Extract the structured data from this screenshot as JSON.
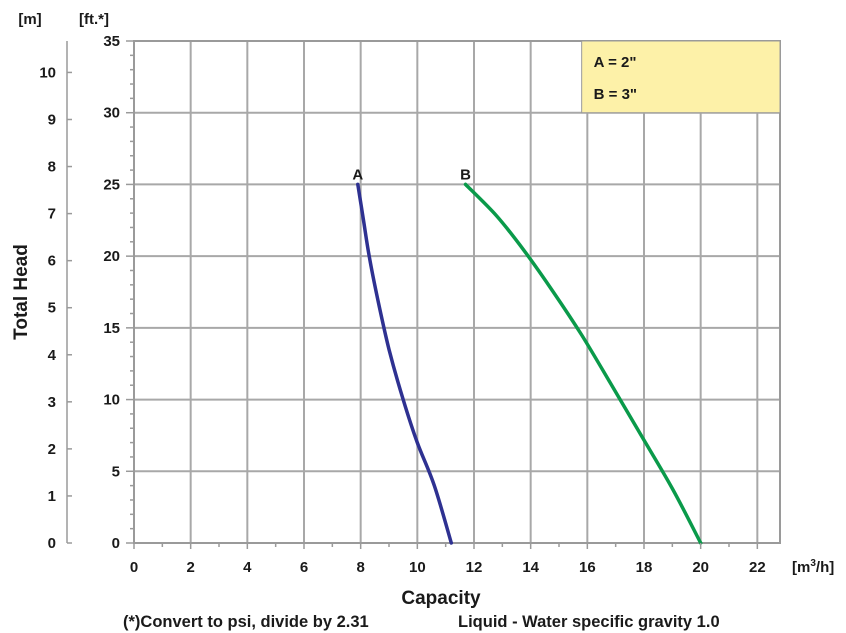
{
  "chart_data": {
    "type": "line",
    "xlabel": "Capacity",
    "ylabel": "Total Head",
    "x_unit": "[m",
    "x_unit_sup": "3",
    "x_unit_end": "/h]",
    "y_unit_ft": "[ft.*]",
    "y_unit_m": "[m]",
    "xlim": [
      0,
      22.8
    ],
    "ylim_ft": [
      0,
      35
    ],
    "x_ticks": [
      "0",
      "2",
      "4",
      "6",
      "8",
      "10",
      "12",
      "14",
      "16",
      "18",
      "20",
      "22"
    ],
    "y_ticks_ft": [
      "0",
      "5",
      "10",
      "15",
      "20",
      "25",
      "30",
      "35"
    ],
    "y_ticks_m": [
      "0",
      "1",
      "2",
      "3",
      "4",
      "5",
      "6",
      "7",
      "8",
      "9",
      "10"
    ],
    "grid": true,
    "legend_position": "top-right",
    "legend_entries": [
      "A = 2\"",
      "B = 3\""
    ],
    "legend_bg": "#fdf1a8",
    "series": [
      {
        "name": "A",
        "color": "#2e3191",
        "x": [
          7.9,
          8.1,
          8.3,
          8.6,
          9.0,
          9.5,
          10.0,
          10.6,
          11.2
        ],
        "y": [
          25,
          22.5,
          20,
          17,
          13.5,
          10,
          7,
          4,
          0
        ]
      },
      {
        "name": "B",
        "color": "#0a9a4a",
        "x": [
          11.7,
          12.8,
          13.8,
          14.8,
          15.8,
          16.8,
          17.9,
          19.0,
          20.0
        ],
        "y": [
          25,
          22.8,
          20.3,
          17.5,
          14.5,
          11.2,
          7.5,
          3.8,
          0
        ]
      }
    ]
  },
  "footnote_left": "(*)Convert to psi, divide by 2.31",
  "footnote_right": "Liquid - Water specific gravity 1.0"
}
